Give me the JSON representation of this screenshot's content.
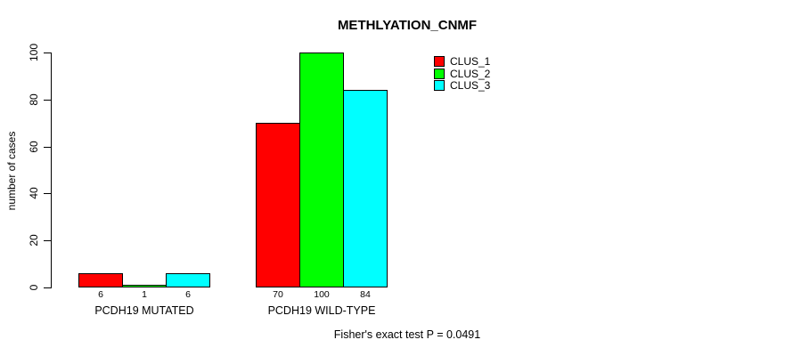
{
  "chart_data": {
    "type": "bar",
    "title": "METHLYATION_CNMF",
    "ylabel": "number of cases",
    "ylim": [
      0,
      100
    ],
    "yticks": [
      0,
      20,
      40,
      60,
      80,
      100
    ],
    "grid": false,
    "legend_position": "top-right",
    "categories": [
      "PCDH19 MUTATED",
      "PCDH19 WILD-TYPE"
    ],
    "series": [
      {
        "name": "CLUS_1",
        "color": "#ff0000",
        "values": [
          6,
          70
        ]
      },
      {
        "name": "CLUS_2",
        "color": "#00ff00",
        "values": [
          1,
          100
        ]
      },
      {
        "name": "CLUS_3",
        "color": "#00ffff",
        "values": [
          6,
          84
        ]
      }
    ],
    "bar_value_labels": [
      [
        6,
        1,
        6
      ],
      [
        70,
        100,
        84
      ]
    ],
    "annotation": "Fisher's exact test P = 0.0491"
  }
}
